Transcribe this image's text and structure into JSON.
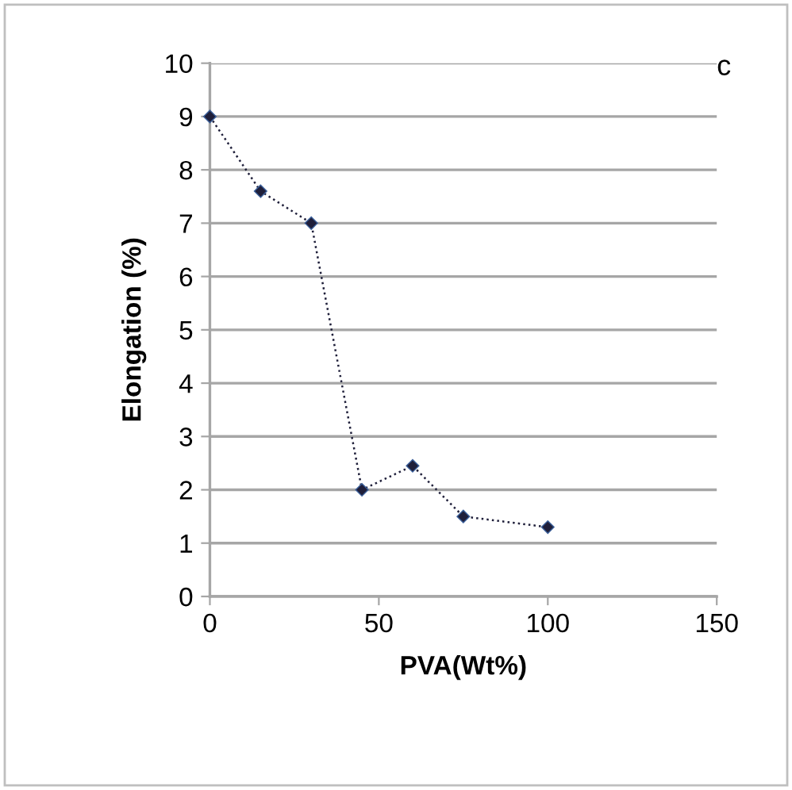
{
  "chart_data": {
    "type": "line",
    "xlabel": "PVA(Wt%)",
    "ylabel": "Elongation (%)",
    "annotations": [
      "c"
    ],
    "x": [
      0,
      15,
      30,
      45,
      60,
      75,
      100
    ],
    "series": [
      {
        "color": "#1f1f3a",
        "values": [
          9,
          7.6,
          7,
          2,
          2.45,
          1.5,
          1.3
        ]
      }
    ],
    "xlim": [
      0,
      150
    ],
    "xticks": [
      0,
      50,
      100,
      150
    ],
    "ylim": [
      0,
      10
    ],
    "yticks": [
      0,
      1,
      2,
      3,
      4,
      5,
      6,
      7,
      8,
      9,
      10
    ],
    "grid": "y",
    "marker": "diamond",
    "line_style": "dotted"
  }
}
